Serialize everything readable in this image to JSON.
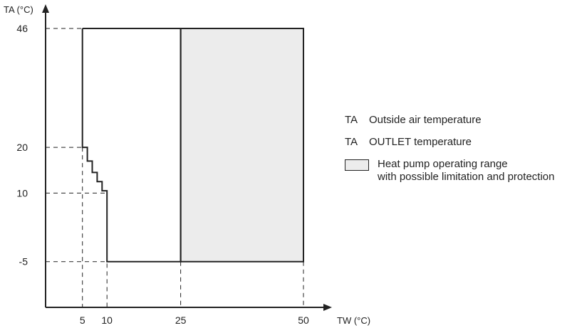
{
  "chart_data": {
    "type": "area",
    "ylabel": "TA (°C)",
    "xlabel": "TW (°C)",
    "x_ticks": [
      5,
      10,
      25,
      50
    ],
    "y_ticks": [
      46,
      20,
      10,
      -5
    ],
    "xlim": [
      -2.5,
      50
    ],
    "ylim": [
      -15,
      46
    ],
    "operating_envelope": [
      [
        5,
        46
      ],
      [
        25,
        46
      ],
      [
        25,
        -5
      ],
      [
        10,
        -5
      ],
      [
        10,
        10.5
      ],
      [
        9,
        10.5
      ],
      [
        9,
        12.5
      ],
      [
        8,
        12.5
      ],
      [
        8,
        14.5
      ],
      [
        7,
        14.5
      ],
      [
        7,
        17
      ],
      [
        6,
        17
      ],
      [
        6,
        20
      ],
      [
        5,
        20
      ],
      [
        5,
        46
      ]
    ],
    "shaded_region": {
      "x": [
        25,
        50
      ],
      "y": [
        -5,
        46
      ]
    },
    "guide_lines": {
      "x": [
        5,
        10,
        25,
        50
      ],
      "y": [
        46,
        20,
        10,
        -5
      ]
    },
    "colors": {
      "line": "#222222",
      "shade": "#ececec"
    }
  },
  "legend": {
    "row1": {
      "symbol": "TA",
      "text": "Outside air temperature"
    },
    "row2": {
      "symbol": "TA",
      "text": "OUTLET temperature"
    },
    "row3": {
      "line1": "Heat pump operating range",
      "line2": "with possible limitation and protection"
    }
  }
}
